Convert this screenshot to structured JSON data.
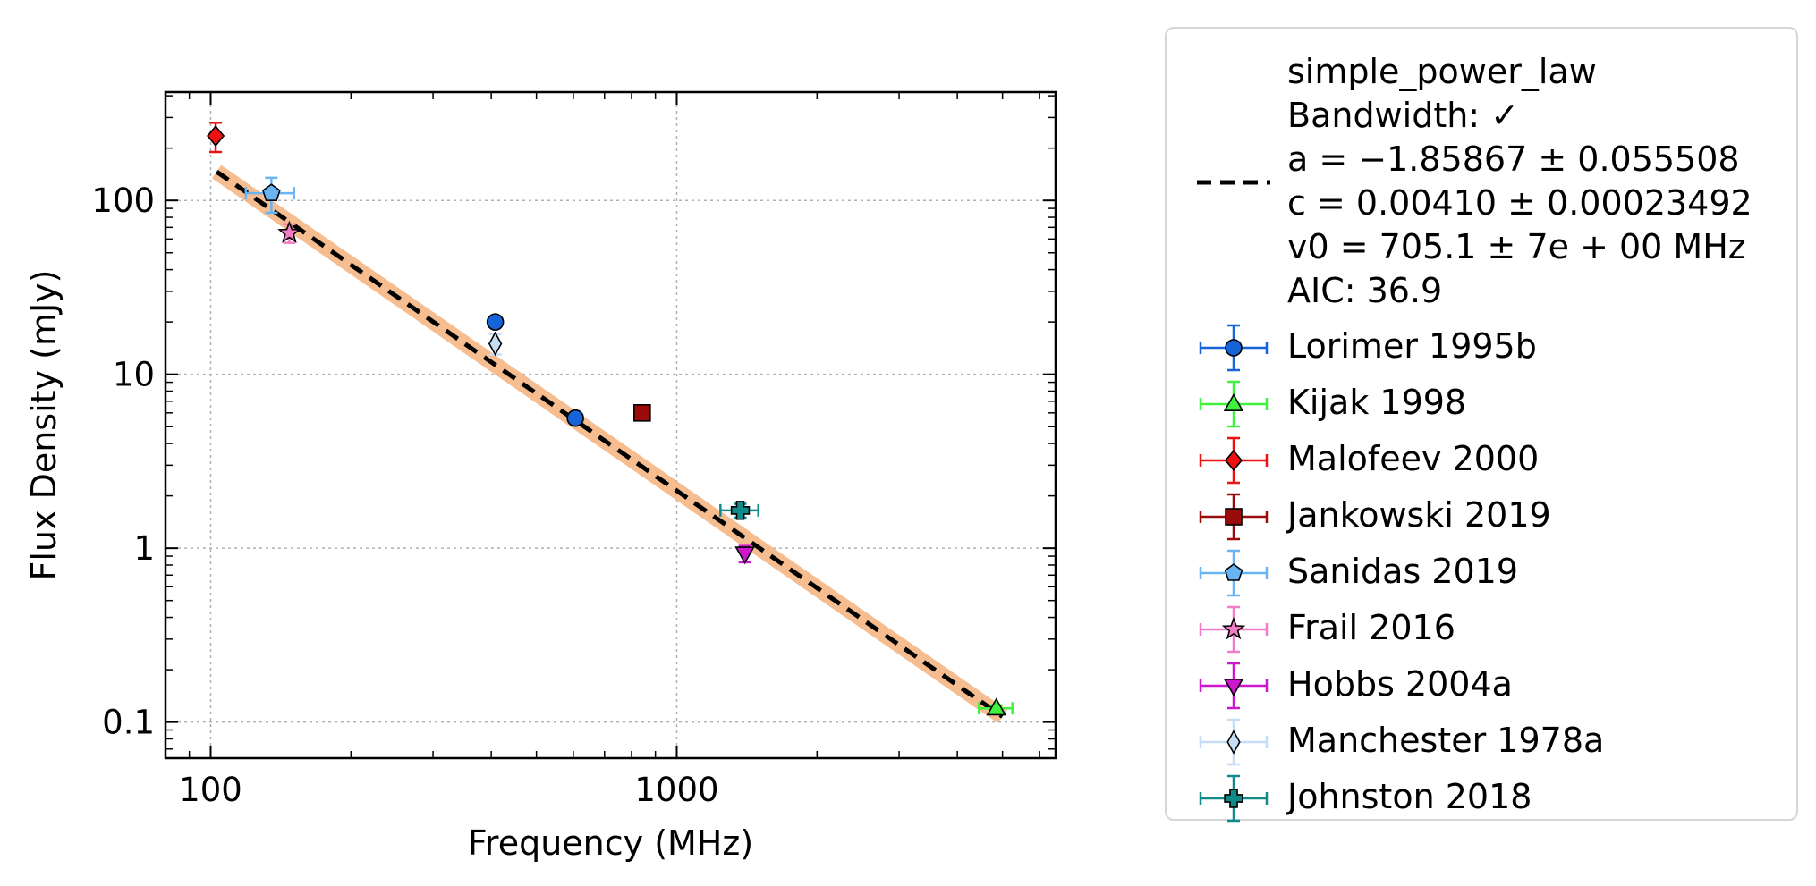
{
  "chart_data": {
    "type": "scatter",
    "title": "",
    "xlabel": "Frequency (MHz)",
    "ylabel": "Flux Density (mJy)",
    "xscale": "log",
    "yscale": "log",
    "xlim": [
      80,
      6500
    ],
    "ylim": [
      0.062,
      420
    ],
    "xticks": [
      {
        "v": 100,
        "label": "100"
      },
      {
        "v": 1000,
        "label": "1000"
      }
    ],
    "yticks": [
      {
        "v": 0.1,
        "label": "0.1"
      },
      {
        "v": 1,
        "label": "1"
      },
      {
        "v": 10,
        "label": "10"
      },
      {
        "v": 100,
        "label": "100"
      }
    ],
    "grid": true,
    "legend_placement": "outside-right",
    "fit": {
      "name": "simple_power_law",
      "lines": [
        "simple_power_law",
        "Bandwidth: ✓",
        "a = −1.85867 ± 0.055508",
        "c = 0.00410 ± 0.00023492",
        "v0 = 705.1 ± 7e + 00 MHz",
        "AIC: 36.9"
      ],
      "a": -1.85867,
      "c": 0.0041,
      "v0": 705.1,
      "x_range": [
        103,
        5000
      ],
      "line_color": "#000000",
      "band_color": "#f5b27c"
    },
    "series": [
      {
        "name": "Lorimer 1995b",
        "marker": "circle",
        "color": "#1565d8",
        "points": [
          {
            "x": 408,
            "y": 20,
            "yerr": 0
          },
          {
            "x": 606,
            "y": 5.6,
            "yerr": 0
          }
        ]
      },
      {
        "name": "Kijak 1998",
        "marker": "triangle-up",
        "color": "#3ef23e",
        "points": [
          {
            "x": 4850,
            "y": 0.12,
            "yerr": 0.005,
            "xerr": 400
          }
        ]
      },
      {
        "name": "Malofeev 2000",
        "marker": "diamond",
        "color": "#ee1111",
        "points": [
          {
            "x": 102.5,
            "y": 235,
            "yerr": 45
          }
        ]
      },
      {
        "name": "Jankowski 2019",
        "marker": "square",
        "color": "#9b0b0b",
        "points": [
          {
            "x": 843,
            "y": 6,
            "yerr": 0.3
          }
        ]
      },
      {
        "name": "Sanidas 2019",
        "marker": "pentagon",
        "color": "#69b4f5",
        "points": [
          {
            "x": 135,
            "y": 110,
            "yerr": 25,
            "xerr": 16
          }
        ]
      },
      {
        "name": "Frail 2016",
        "marker": "star",
        "color": "#f07dc5",
        "points": [
          {
            "x": 147.5,
            "y": 65,
            "yerr": 8
          }
        ]
      },
      {
        "name": "Hobbs 2004a",
        "marker": "triangle-down",
        "color": "#cc17cc",
        "points": [
          {
            "x": 1400,
            "y": 0.93,
            "yerr": 0.1
          }
        ]
      },
      {
        "name": "Manchester 1978a",
        "marker": "thin-diamond",
        "color": "#c5ddf5",
        "points": [
          {
            "x": 408,
            "y": 15,
            "yerr": 2
          }
        ]
      },
      {
        "name": "Johnston 2018",
        "marker": "plus",
        "color": "#108a8a",
        "points": [
          {
            "x": 1369,
            "y": 1.65,
            "yerr": 0.15,
            "xerr": 128
          }
        ]
      }
    ]
  }
}
